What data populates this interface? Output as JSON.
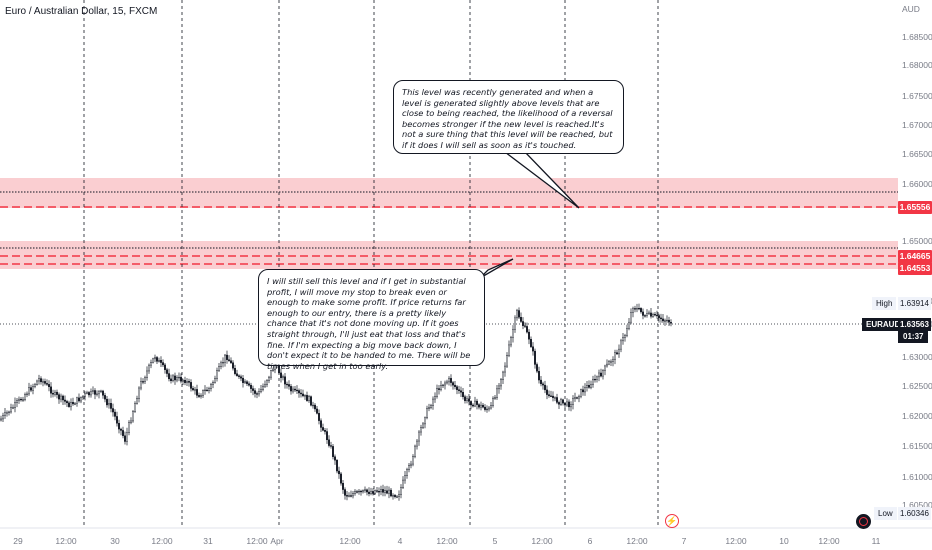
{
  "symbol_title": "Euro / Australian Dollar, 15, FXCM",
  "price_axis": {
    "currency": "AUD",
    "ticks": [
      "1.68500",
      "1.68000",
      "1.67500",
      "1.67000",
      "1.66500",
      "1.66000",
      "1.65500",
      "1.65000",
      "1.64500",
      "1.64000",
      "1.63500",
      "1.63000",
      "1.62500",
      "1.62000",
      "1.61500",
      "1.61000",
      "1.60500"
    ]
  },
  "time_axis": {
    "ticks": [
      "29",
      "12:00",
      "30",
      "12:00",
      "31",
      "12:00",
      "Apr",
      "12:00",
      "4",
      "12:00",
      "5",
      "12:00",
      "6",
      "12:00",
      "7",
      "12:00",
      "10",
      "12:00",
      "11"
    ]
  },
  "levels": {
    "upper_zone_price": "1.65556",
    "lower_zone_price_1": "1.64665",
    "lower_zone_price_2": "1.64553"
  },
  "stats": {
    "high_label": "High",
    "high_value": "1.63914",
    "symbol_label": "EURAUD",
    "last_price": "1.63563",
    "countdown": "01:37",
    "low_label": "Low",
    "low_value": "1.60346"
  },
  "notes": {
    "upper": "This level was recently generated and when a level is generated slightly above levels that are close to being reached, the likelihood of a reversal becomes stronger if the new level is reached.It's not a sure thing that this level will be reached, but if it does I will sell as soon as it's touched.",
    "lower": "I will still sell this level and if I get in substantial profit, I will move my stop to break even or enough to make some profit. If price returns far enough to our entry, there is a pretty likely chance that it's not done moving up. If it goes straight through, I'll just eat that loss and that's fine. If I'm expecting a big move back down, I don't expect it to be handed to me. There will be times when I get in too early."
  },
  "colors": {
    "bearish": "#131722",
    "zone": "#f7c5c8",
    "level_line": "#f23645",
    "grid": "#131722"
  }
}
